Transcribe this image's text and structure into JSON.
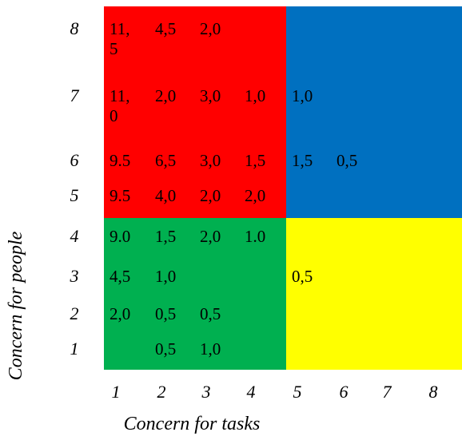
{
  "chart_data": {
    "type": "heatmap",
    "title": "",
    "xlabel": "Concern for tasks",
    "ylabel": "Concern for people",
    "x_ticks": [
      "1",
      "2",
      "3",
      "4",
      "5",
      "6",
      "7",
      "8"
    ],
    "y_ticks": [
      "1",
      "2",
      "3",
      "4",
      "5",
      "6",
      "7",
      "8"
    ],
    "regions": [
      {
        "x_range": [
          1,
          4
        ],
        "y_range": [
          5,
          8
        ],
        "color": "#ff0000"
      },
      {
        "x_range": [
          5,
          8
        ],
        "y_range": [
          5,
          8
        ],
        "color": "#0070c0"
      },
      {
        "x_range": [
          1,
          4
        ],
        "y_range": [
          1,
          4
        ],
        "color": "#00b050"
      },
      {
        "x_range": [
          5,
          8
        ],
        "y_range": [
          1,
          4
        ],
        "color": "#ffff00"
      }
    ],
    "cells": [
      {
        "x": 1,
        "y": 8,
        "label": "11,",
        "label2": "5"
      },
      {
        "x": 2,
        "y": 8,
        "label": "4,5"
      },
      {
        "x": 3,
        "y": 8,
        "label": "2,0"
      },
      {
        "x": 1,
        "y": 7,
        "label": "11,",
        "label2": "0"
      },
      {
        "x": 2,
        "y": 7,
        "label": "2,0"
      },
      {
        "x": 3,
        "y": 7,
        "label": "3,0"
      },
      {
        "x": 4,
        "y": 7,
        "label": "1,0"
      },
      {
        "x": 5,
        "y": 7,
        "label": "1,0"
      },
      {
        "x": 1,
        "y": 6,
        "label": "9.5"
      },
      {
        "x": 2,
        "y": 6,
        "label": "6,5"
      },
      {
        "x": 3,
        "y": 6,
        "label": "3,0"
      },
      {
        "x": 4,
        "y": 6,
        "label": "1,5"
      },
      {
        "x": 5,
        "y": 6,
        "label": "1,5"
      },
      {
        "x": 6,
        "y": 6,
        "label": "0,5"
      },
      {
        "x": 1,
        "y": 5,
        "label": "9.5"
      },
      {
        "x": 2,
        "y": 5,
        "label": "4,0"
      },
      {
        "x": 3,
        "y": 5,
        "label": "2,0"
      },
      {
        "x": 4,
        "y": 5,
        "label": "2,0"
      },
      {
        "x": 1,
        "y": 4,
        "label": "9.0"
      },
      {
        "x": 2,
        "y": 4,
        "label": "1,5"
      },
      {
        "x": 3,
        "y": 4,
        "label": "2,0"
      },
      {
        "x": 4,
        "y": 4,
        "label": "1.0"
      },
      {
        "x": 1,
        "y": 3,
        "label": "4,5"
      },
      {
        "x": 2,
        "y": 3,
        "label": "1,0"
      },
      {
        "x": 5,
        "y": 3,
        "label": "0,5"
      },
      {
        "x": 1,
        "y": 2,
        "label": "2,0"
      },
      {
        "x": 2,
        "y": 2,
        "label": "0,5"
      },
      {
        "x": 3,
        "y": 2,
        "label": "0,5"
      },
      {
        "x": 2,
        "y": 1,
        "label": "0,5"
      },
      {
        "x": 3,
        "y": 1,
        "label": "1,0"
      }
    ]
  }
}
